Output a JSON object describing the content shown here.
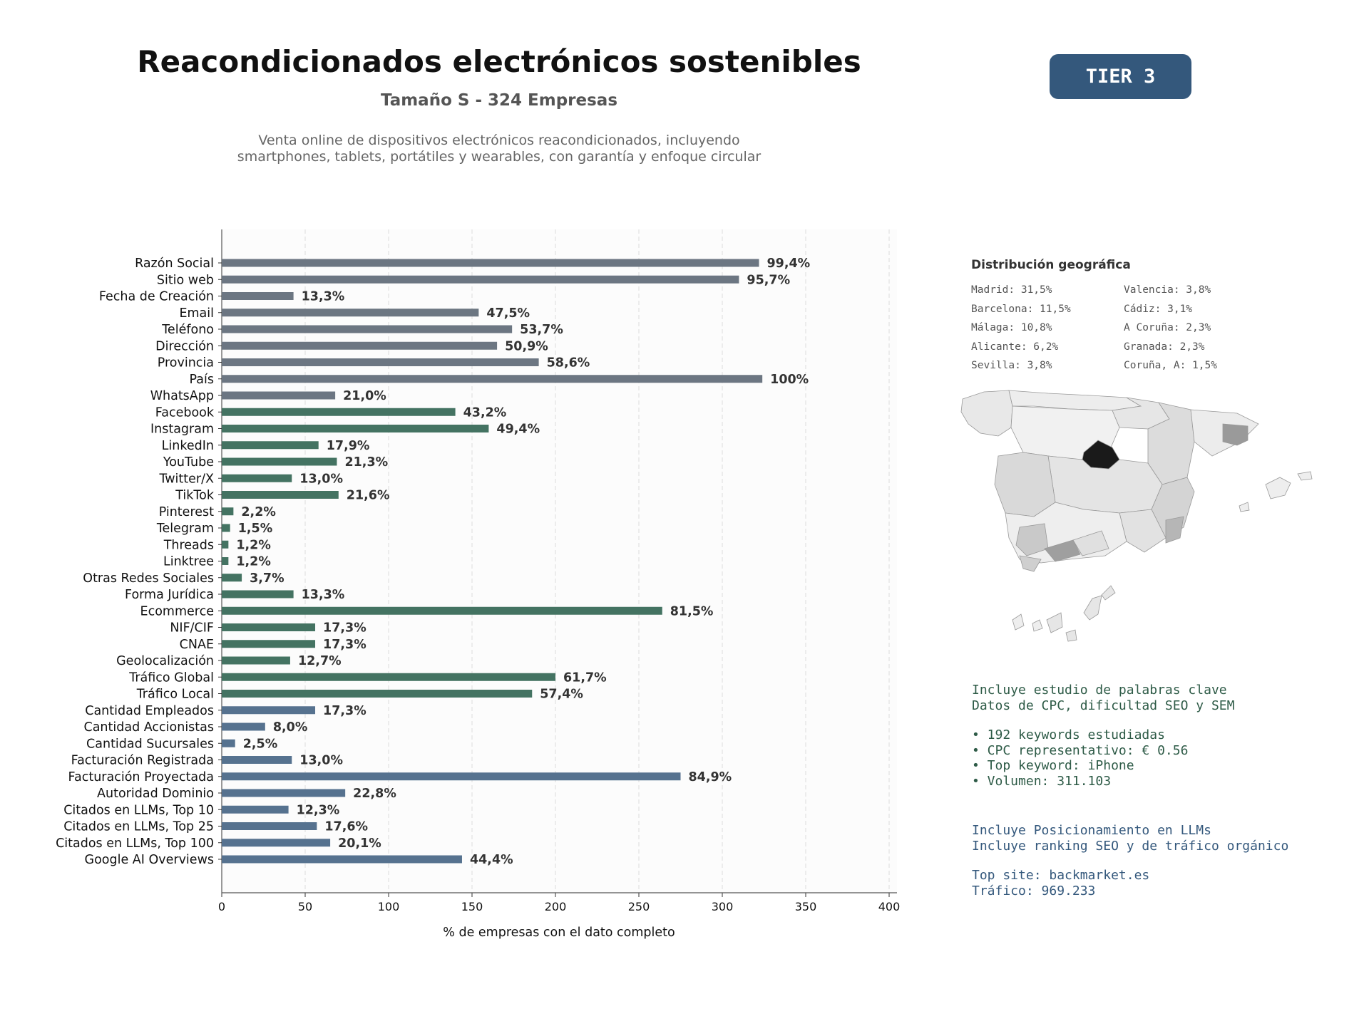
{
  "header": {
    "title": "Reacondicionados electrónicos sostenibles",
    "subtitle": "Tamaño S - 324 Empresas",
    "description": "Venta online de dispositivos electrónicos reacondicionados, incluyendo smartphones, tablets, portátiles y wearables, con garantía y enfoque circular",
    "tier_label": "TIER 3"
  },
  "colors": {
    "tier_badge": "#34587c",
    "group_1": "#6c7682",
    "group_2": "#447362",
    "group_3": "#56728f",
    "keyword_text": "#2e5b47",
    "llm_text": "#34587c"
  },
  "chart_data": {
    "type": "bar",
    "orientation": "horizontal",
    "xlabel": "% de empresas con el dato completo",
    "xlim": [
      0,
      400
    ],
    "xticks": [
      0,
      50,
      100,
      150,
      200,
      250,
      300,
      350,
      400
    ],
    "grid": "x, dashed",
    "categories": [
      "Razón Social",
      "Sitio web",
      "Fecha de Creación",
      "Email",
      "Teléfono",
      "Dirección",
      "Provincia",
      "País",
      "WhatsApp",
      "Facebook",
      "Instagram",
      "LinkedIn",
      "YouTube",
      "Twitter/X",
      "TikTok",
      "Pinterest",
      "Telegram",
      "Threads",
      "Linktree",
      "Otras Redes Sociales",
      "Forma Jurídica",
      "Ecommerce",
      "NIF/CIF",
      "CNAE",
      "Geolocalización",
      "Tráfico Global",
      "Tráfico Local",
      "Cantidad Empleados",
      "Cantidad Accionistas",
      "Cantidad Sucursales",
      "Facturación Registrada",
      "Facturación Proyectada",
      "Autoridad Dominio",
      "Citados en LLMs, Top 10",
      "Citados en LLMs, Top 25",
      "Citados en LLMs, Top 100",
      "Google AI Overviews"
    ],
    "values": [
      322,
      310,
      43,
      154,
      174,
      165,
      190,
      324,
      68,
      140,
      160,
      58,
      69,
      42,
      70,
      7,
      5,
      4,
      4,
      12,
      43,
      264,
      56,
      56,
      41,
      200,
      186,
      56,
      26,
      8,
      42,
      275,
      74,
      40,
      57,
      65,
      144
    ],
    "labels": [
      "99,4%",
      "95,7%",
      "13,3%",
      "47,5%",
      "53,7%",
      "50,9%",
      "58,6%",
      "100%",
      "21,0%",
      "43,2%",
      "49,4%",
      "17,9%",
      "21,3%",
      "13,0%",
      "21,6%",
      "2,2%",
      "1,5%",
      "1,2%",
      "1,2%",
      "3,7%",
      "13,3%",
      "81,5%",
      "17,3%",
      "17,3%",
      "12,7%",
      "61,7%",
      "57,4%",
      "17,3%",
      "8,0%",
      "2,5%",
      "13,0%",
      "84,9%",
      "22,8%",
      "12,3%",
      "17,6%",
      "20,1%",
      "44,4%"
    ],
    "groups": [
      1,
      1,
      1,
      1,
      1,
      1,
      1,
      1,
      1,
      2,
      2,
      2,
      2,
      2,
      2,
      2,
      2,
      2,
      2,
      2,
      2,
      2,
      2,
      2,
      2,
      2,
      2,
      3,
      3,
      3,
      3,
      3,
      3,
      3,
      3,
      3,
      3
    ]
  },
  "geo": {
    "title": "Distribución geográfica",
    "items": [
      "Madrid: 31,5%",
      "Valencia: 3,8%",
      "Barcelona: 11,5%",
      "Cádiz: 3,1%",
      "Málaga: 10,8%",
      "A Coruña: 2,3%",
      "Alicante: 6,2%",
      "Granada: 2,3%",
      "Sevilla: 3,8%",
      "Coruña, A: 1,5%"
    ]
  },
  "keywords": {
    "line1": "Incluye estudio de palabras clave",
    "line2": "Datos de CPC, dificultad SEO y SEM",
    "bullet1": "• 192 keywords estudiadas",
    "bullet2": "• CPC representativo: € 0.56",
    "bullet3": "• Top keyword: iPhone",
    "bullet4": "• Volumen: 311.103"
  },
  "llm": {
    "line1": "Incluye Posicionamiento en LLMs",
    "line2": "Incluye ranking SEO y de tráfico orgánico",
    "top_site": "Top site: backmarket.es",
    "traffic": "Tráfico: 969.233"
  }
}
